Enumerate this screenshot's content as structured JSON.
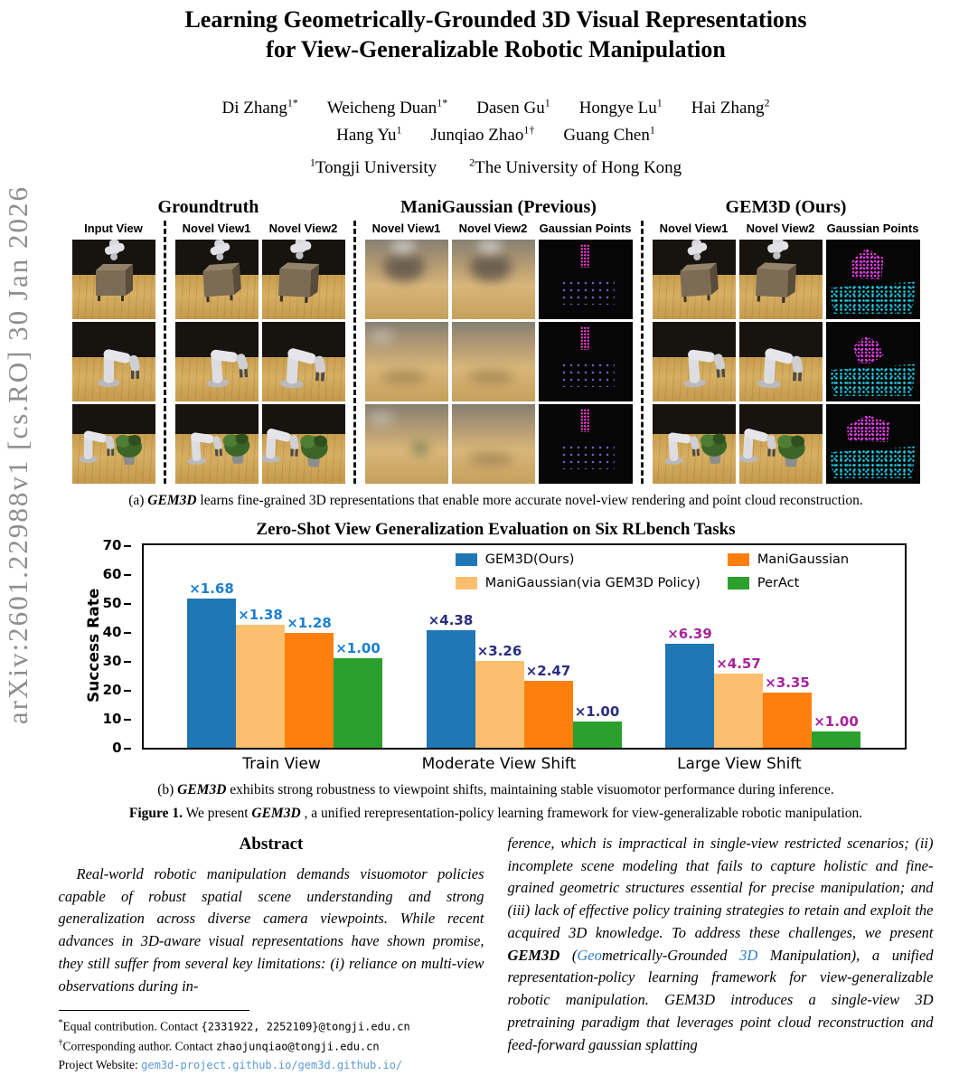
{
  "paper": {
    "title_line1": "Learning Geometrically-Grounded 3D Visual Representations",
    "title_line2": "for View-Generalizable Robotic Manipulation",
    "authors_line1": [
      {
        "name": "Di Zhang",
        "sup": "1*"
      },
      {
        "name": "Weicheng Duan",
        "sup": "1*"
      },
      {
        "name": "Dasen Gu",
        "sup": "1"
      },
      {
        "name": "Hongye Lu",
        "sup": "1"
      },
      {
        "name": "Hai Zhang",
        "sup": "2"
      }
    ],
    "authors_line2": [
      {
        "name": "Hang Yu",
        "sup": "1"
      },
      {
        "name": "Junqiao Zhao",
        "sup": "1†"
      },
      {
        "name": "Guang Chen",
        "sup": "1"
      }
    ],
    "affiliations": [
      {
        "sup": "1",
        "name": "Tongji University"
      },
      {
        "sup": "2",
        "name": "The University of Hong Kong"
      }
    ],
    "arxiv_sidebar": "arXiv:2601.22988v1  [cs.RO]  30 Jan 2026"
  },
  "figure": {
    "groups": [
      "Groundtruth",
      "ManiGaussian (Previous)",
      "GEM3D (Ours)"
    ],
    "column_labels": [
      "Input View",
      "Novel View1",
      "Novel View2",
      "Novel View1",
      "Novel View2",
      "Gaussian Points",
      "Novel View1",
      "Novel View2",
      "Gaussian Points"
    ],
    "caption_a": {
      "tag": "(a)",
      "term": "GEM3D",
      "text": "learns fine-grained 3D representations that enable more accurate novel-view rendering and point cloud reconstruction."
    },
    "caption_b": {
      "tag": "(b)",
      "term": "GEM3D",
      "text": "exhibits strong robustness to viewpoint shifts, maintaining stable visuomotor performance during inference."
    },
    "figure_caption": {
      "label": "Figure 1.",
      "pre": "We present",
      "term": "GEM3D",
      "post": " , a unified rerepresentation-policy learning framework for view-generalizable robotic manipulation."
    }
  },
  "chart_data": {
    "type": "bar",
    "title": "Zero-Shot View Generalization Evaluation on Six RLbench Tasks",
    "ylabel": "Success Rate",
    "xlabel": "",
    "ylim": [
      0,
      70
    ],
    "yticks": [
      0,
      10,
      20,
      30,
      40,
      50,
      60,
      70
    ],
    "grid": false,
    "legend_position": "upper center inside",
    "series": [
      {
        "name": "GEM3D(Ours)",
        "color": "#1f77b4"
      },
      {
        "name": "ManiGaussian(via GEM3D Policy)",
        "color": "#fdbf6f"
      },
      {
        "name": "ManiGaussian",
        "color": "#ff7f0e"
      },
      {
        "name": "PerAct",
        "color": "#2ca02c"
      }
    ],
    "legend_order": [
      0,
      2,
      1,
      3
    ],
    "groups": [
      {
        "category": "Train View",
        "annotation_color": "#1b7fd1",
        "values": [
          51.5,
          42.5,
          39.5,
          31
        ],
        "annotations": [
          "×1.68",
          "×1.38",
          "×1.28",
          "×1.00"
        ]
      },
      {
        "category": "Moderate View Shift",
        "annotation_color": "#2b2d7e",
        "values": [
          40.5,
          30,
          23,
          9
        ],
        "annotations": [
          "×4.38",
          "×3.26",
          "×2.47",
          "×1.00"
        ]
      },
      {
        "category": "Large View Shift",
        "annotation_color": "#a6249c",
        "values": [
          36,
          25.5,
          19,
          5.5
        ],
        "annotations": [
          "×6.39",
          "×4.57",
          "×3.35",
          "×1.00"
        ]
      }
    ]
  },
  "abstract": {
    "heading": "Abstract",
    "left_text": "Real-world robotic manipulation demands visuomotor policies capable of robust spatial scene understanding and strong generalization across diverse camera viewpoints. While recent advances in 3D-aware visual representations have shown promise, they still suffer from several key limitations: (i) reliance on multi-view observations during in-",
    "right_segments": [
      {
        "text": "ference, which is impractical in single-view restricted scenarios; (ii) incomplete scene modeling that fails to capture holistic and fine-grained geometric structures essential for precise manipulation; and (iii) lack of effective policy training strategies to retain and exploit the acquired 3D knowledge. To address these challenges, we present ",
        "style": "italic"
      },
      {
        "text": "GEM3D",
        "style": "bold-italic"
      },
      {
        "text": " (",
        "style": "italic"
      },
      {
        "text": "Geo",
        "style": "italic-link"
      },
      {
        "text": "metrically-Grounded ",
        "style": "italic"
      },
      {
        "text": "3D",
        "style": "italic-link"
      },
      {
        "text": " Manipulation), a unified representation-policy learning framework for view-generalizable robotic manipulation. GEM3D introduces a single-view 3D pretraining paradigm that leverages point cloud reconstruction and feed-forward gaussian splatting",
        "style": "italic"
      }
    ]
  },
  "footnotes": {
    "fn1": {
      "sym": "*",
      "text": "Equal contribution. Contact ",
      "mono": "{2331922, 2252109}@tongji.edu.cn"
    },
    "fn2": {
      "sym": "†",
      "text": "Corresponding author. Contact ",
      "mono": "zhaojunqiao@tongji.edu.cn"
    },
    "fn3": {
      "text": "Project Website: ",
      "mono": "gem3d-project.github.io/gem3d.github.io/"
    }
  }
}
